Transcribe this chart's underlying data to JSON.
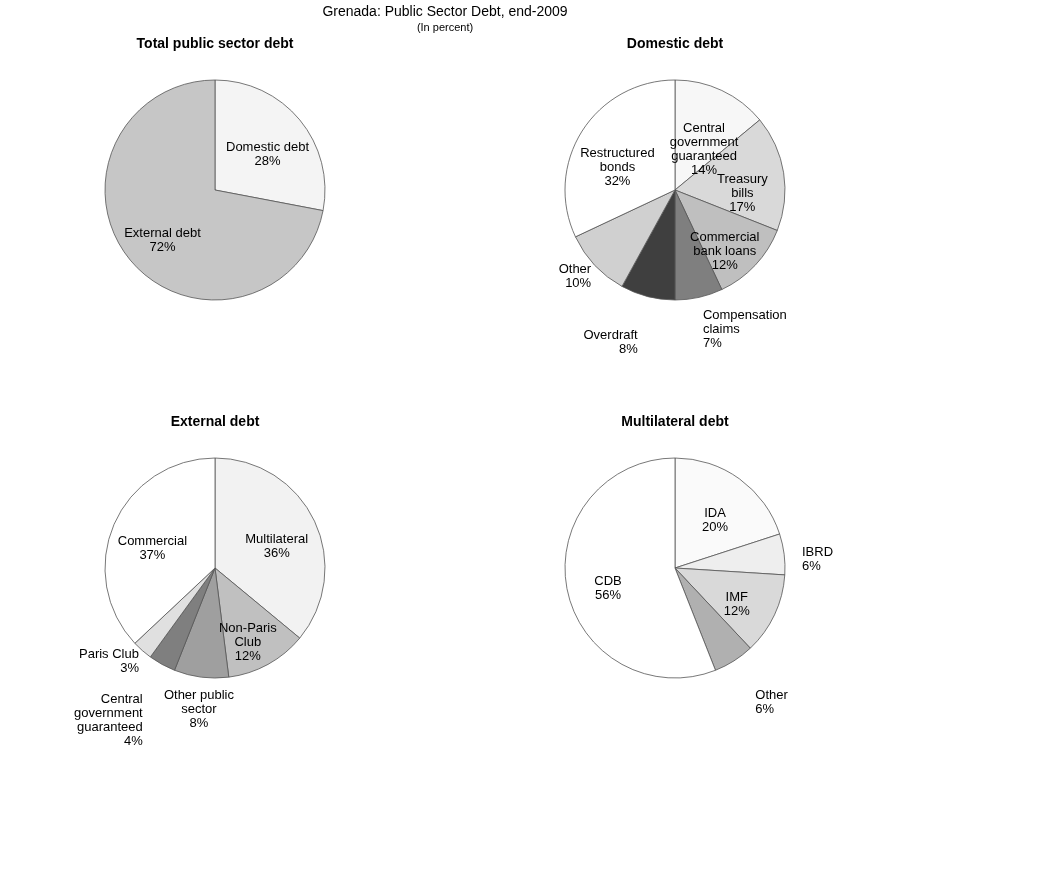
{
  "chart_data": [
    {
      "type": "pie",
      "title": "Grenada: Public Sector Debt, end-2009",
      "subtitle": "(In percent)",
      "annotations": [
        "Total public sector debt"
      ],
      "categories": [
        "Domestic debt",
        "External debt"
      ],
      "values": [
        28,
        72
      ],
      "value_labels": [
        "28%",
        "72%"
      ],
      "colors": [
        "#f4f4f4",
        "#c6c6c6"
      ]
    },
    {
      "type": "pie",
      "title": "Domestic debt",
      "categories": [
        "Central government guaranteed",
        "Treasury bills",
        "Commercial bank loans",
        "Compensation claims",
        "Overdraft",
        "Other",
        "Restructured bonds"
      ],
      "values": [
        14,
        17,
        12,
        7,
        8,
        10,
        32
      ],
      "value_labels": [
        "14%",
        "17%",
        "12%",
        "7%",
        "8%",
        "10%",
        "32%"
      ],
      "colors": [
        "#f7f7f7",
        "#d9d9d9",
        "#bfbfbf",
        "#7f7f7f",
        "#3f3f3f",
        "#d0d0d0",
        "#ffffff"
      ]
    },
    {
      "type": "pie",
      "title": "External debt",
      "categories": [
        "Multilateral",
        "Non-Paris Club",
        "Other public sector",
        "Central government guaranteed",
        "Paris Club",
        "Commercial"
      ],
      "values": [
        36,
        12,
        8,
        4,
        3,
        37
      ],
      "value_labels": [
        "36%",
        "12%",
        "8%",
        "4%",
        "3%",
        "37%"
      ],
      "colors": [
        "#f2f2f2",
        "#c0c0c0",
        "#9f9f9f",
        "#7f7f7f",
        "#e0e0e0",
        "#ffffff"
      ]
    },
    {
      "type": "pie",
      "title": "Multilateral debt",
      "categories": [
        "IDA",
        "IBRD",
        "IMF",
        "Other",
        "CDB"
      ],
      "values": [
        20,
        6,
        12,
        6,
        56
      ],
      "value_labels": [
        "20%",
        "6%",
        "12%",
        "6%",
        "56%"
      ],
      "colors": [
        "#fafafa",
        "#eeeeee",
        "#d9d9d9",
        "#b0b0b0",
        "#ffffff"
      ]
    }
  ]
}
